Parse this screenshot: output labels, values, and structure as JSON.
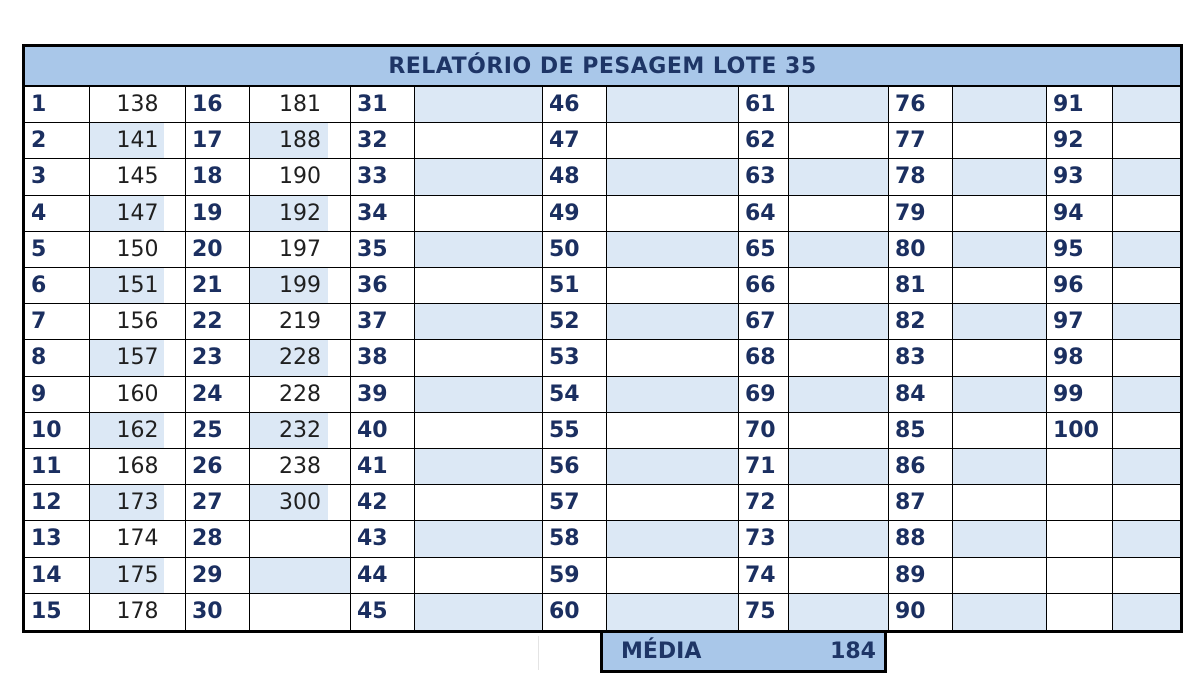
{
  "title": "RELATÓRIO DE PESAGEM LOTE 35",
  "rows": [
    {
      "cells": [
        "1",
        "138",
        "16",
        "181",
        "31",
        "",
        "46",
        "",
        "61",
        "",
        "76",
        "",
        "91",
        ""
      ]
    },
    {
      "cells": [
        "2",
        "141",
        "17",
        "188",
        "32",
        "",
        "47",
        "",
        "62",
        "",
        "77",
        "",
        "92",
        ""
      ]
    },
    {
      "cells": [
        "3",
        "145",
        "18",
        "190",
        "33",
        "",
        "48",
        "",
        "63",
        "",
        "78",
        "",
        "93",
        ""
      ]
    },
    {
      "cells": [
        "4",
        "147",
        "19",
        "192",
        "34",
        "",
        "49",
        "",
        "64",
        "",
        "79",
        "",
        "94",
        ""
      ]
    },
    {
      "cells": [
        "5",
        "150",
        "20",
        "197",
        "35",
        "",
        "50",
        "",
        "65",
        "",
        "80",
        "",
        "95",
        ""
      ]
    },
    {
      "cells": [
        "6",
        "151",
        "21",
        "199",
        "36",
        "",
        "51",
        "",
        "66",
        "",
        "81",
        "",
        "96",
        ""
      ]
    },
    {
      "cells": [
        "7",
        "156",
        "22",
        "219",
        "37",
        "",
        "52",
        "",
        "67",
        "",
        "82",
        "",
        "97",
        ""
      ]
    },
    {
      "cells": [
        "8",
        "157",
        "23",
        "228",
        "38",
        "",
        "53",
        "",
        "68",
        "",
        "83",
        "",
        "98",
        ""
      ]
    },
    {
      "cells": [
        "9",
        "160",
        "24",
        "228",
        "39",
        "",
        "54",
        "",
        "69",
        "",
        "84",
        "",
        "99",
        ""
      ]
    },
    {
      "cells": [
        "10",
        "162",
        "25",
        "232",
        "40",
        "",
        "55",
        "",
        "70",
        "",
        "85",
        "",
        "100",
        ""
      ]
    },
    {
      "cells": [
        "11",
        "168",
        "26",
        "238",
        "41",
        "",
        "56",
        "",
        "71",
        "",
        "86",
        "",
        "",
        ""
      ]
    },
    {
      "cells": [
        "12",
        "173",
        "27",
        "300",
        "42",
        "",
        "57",
        "",
        "72",
        "",
        "87",
        "",
        "",
        ""
      ]
    },
    {
      "cells": [
        "13",
        "174",
        "28",
        "",
        "43",
        "",
        "58",
        "",
        "73",
        "",
        "88",
        "",
        "",
        ""
      ]
    },
    {
      "cells": [
        "14",
        "175",
        "29",
        "",
        "44",
        "",
        "59",
        "",
        "74",
        "",
        "89",
        "",
        "",
        ""
      ]
    },
    {
      "cells": [
        "15",
        "178",
        "30",
        "",
        "45",
        "",
        "60",
        "",
        "75",
        "",
        "90",
        "",
        "",
        ""
      ]
    }
  ],
  "summary": {
    "label": "MÉDIA",
    "value": "184"
  },
  "colors": {
    "header_bg": "#a9c7e9",
    "stripe": "#dce8f5",
    "text_dark": "#1b2f60"
  }
}
